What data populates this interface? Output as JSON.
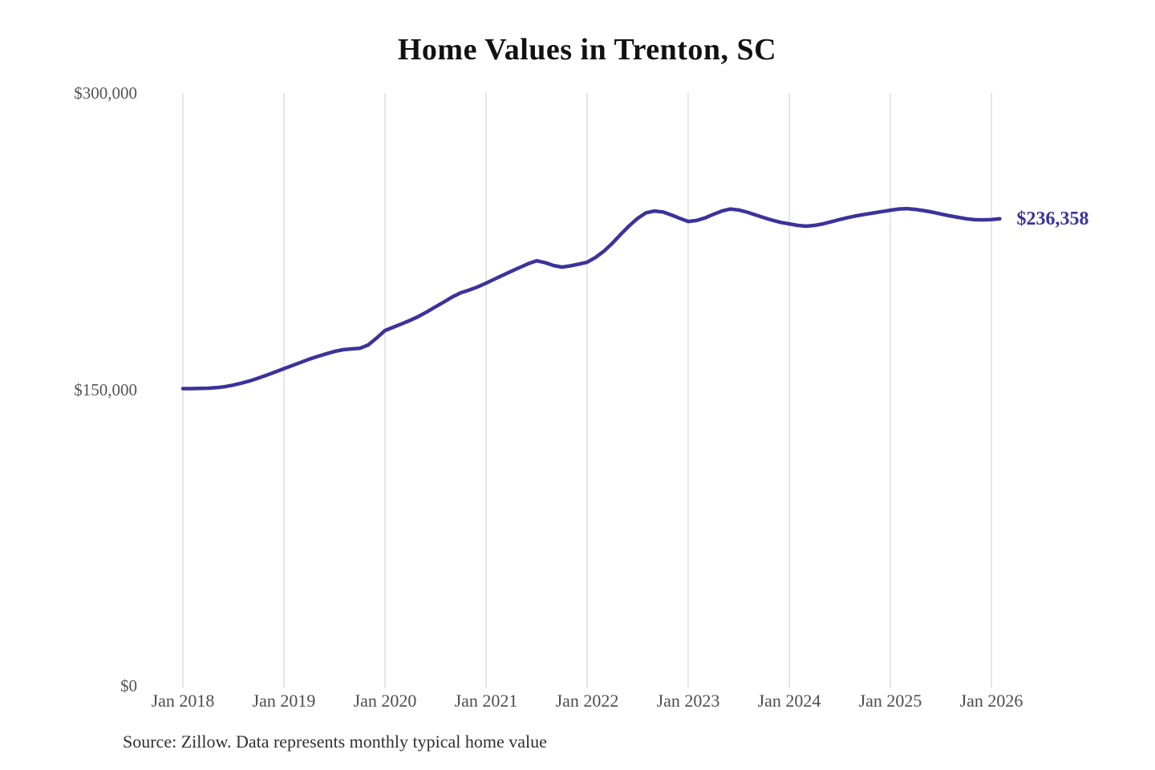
{
  "chart_data": {
    "type": "line",
    "title": "Home Values in Trenton, SC",
    "source": "Source: Zillow. Data represents monthly typical home value",
    "x_start": "Jan 2018",
    "x_interval": "monthly",
    "x_tick_labels": [
      "Jan 2018",
      "Jan 2019",
      "Jan 2020",
      "Jan 2021",
      "Jan 2022",
      "Jan 2023",
      "Jan 2024",
      "Jan 2025",
      "Jan 2026"
    ],
    "y_ticks": [
      {
        "value": 0,
        "label": "$0"
      },
      {
        "value": 150000,
        "label": "$150,000"
      },
      {
        "value": 300000,
        "label": "$300,000"
      }
    ],
    "ylim": [
      0,
      300000
    ],
    "grid": "vertical-only",
    "legend": "none",
    "end_label": "$236,358",
    "end_value": 236358,
    "line_color": "#3b339b",
    "grid_color": "#cccccc",
    "series": [
      {
        "name": "Typical home value",
        "values": [
          150400,
          150400,
          150500,
          150600,
          150900,
          151400,
          152200,
          153200,
          154400,
          155800,
          157300,
          158900,
          160500,
          162100,
          163700,
          165300,
          166700,
          168000,
          169200,
          170100,
          170500,
          170800,
          172500,
          176000,
          179800,
          181500,
          183200,
          185000,
          187000,
          189300,
          191800,
          194300,
          196800,
          198900,
          200300,
          201900,
          203800,
          205800,
          207800,
          209800,
          211700,
          213600,
          215100,
          214200,
          212700,
          211900,
          212500,
          213400,
          214400,
          216800,
          220000,
          224000,
          228500,
          232800,
          236600,
          239400,
          240300,
          239800,
          238300,
          236600,
          235000,
          235500,
          236800,
          238600,
          240300,
          241300,
          240800,
          239700,
          238300,
          236900,
          235600,
          234500,
          233800,
          233000,
          232600,
          233000,
          233800,
          234900,
          236000,
          237000,
          237900,
          238600,
          239300,
          240000,
          240700,
          241300,
          241500,
          241100,
          240500,
          239700,
          238800,
          237900,
          237100,
          236400,
          235900,
          235800,
          236000,
          236358
        ]
      }
    ]
  }
}
